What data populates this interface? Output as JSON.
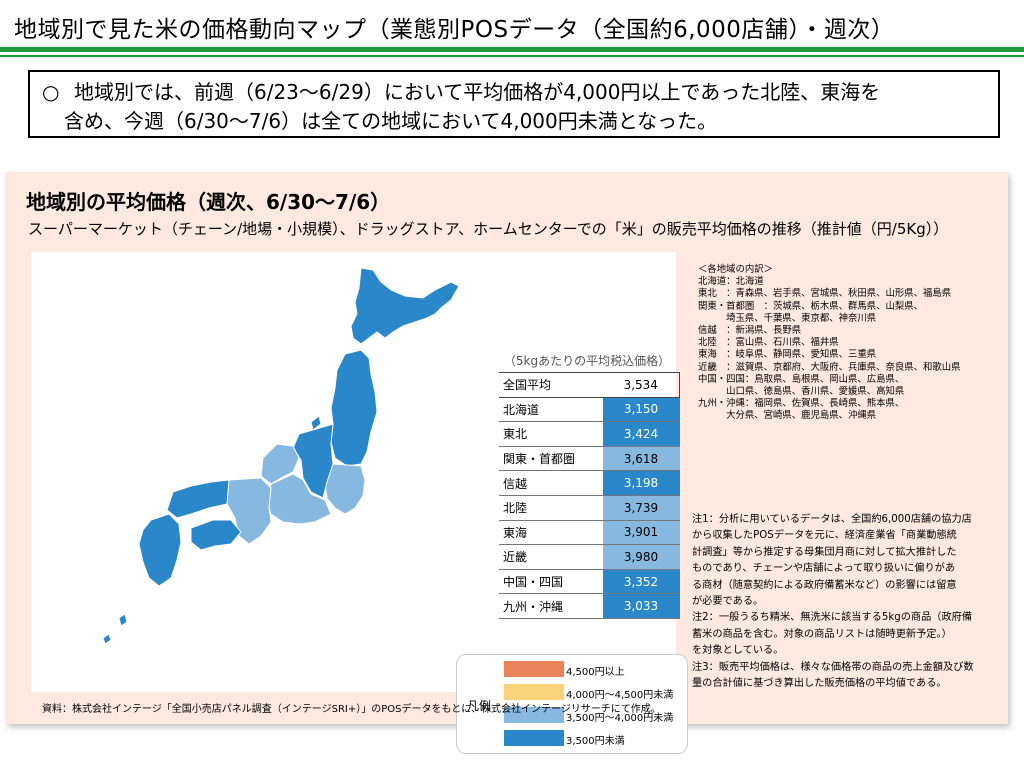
{
  "page": {
    "title": "地域別で見た米の価格動向マップ（業態別POSデータ（全国約6,000店舗）・週次）"
  },
  "summary": {
    "bullet": "○",
    "line1": "地域別では、前週（6/23～6/29）において平均価格が4,000円以上であった北陸、東海を",
    "line2": "含め、今週（6/30～7/6）は全ての地域において4,000円未満となった。"
  },
  "panel": {
    "title": "地域別の平均価格（週次、6/30～7/6）",
    "subtitle": "スーパーマーケット（チェーン/地場・小規模）、ドラッグストア、ホームセンターでの「米」の販売平均価格の推移（推計値（円/5Kg））"
  },
  "table": {
    "caption": "（5kgあたりの平均税込価格）",
    "rows": [
      {
        "region": "全国平均",
        "value": "3,534",
        "band": "none"
      },
      {
        "region": "北海道",
        "value": "3,150",
        "band": "under_3500"
      },
      {
        "region": "東北",
        "value": "3,424",
        "band": "under_3500"
      },
      {
        "region": "関東・首都圏",
        "value": "3,618",
        "band": "3500_4000"
      },
      {
        "region": "信越",
        "value": "3,198",
        "band": "under_3500"
      },
      {
        "region": "北陸",
        "value": "3,739",
        "band": "3500_4000"
      },
      {
        "region": "東海",
        "value": "3,901",
        "band": "3500_4000"
      },
      {
        "region": "近畿",
        "value": "3,980",
        "band": "3500_4000"
      },
      {
        "region": "中国・四国",
        "value": "3,352",
        "band": "under_3500"
      },
      {
        "region": "九州・沖縄",
        "value": "3,033",
        "band": "under_3500"
      }
    ]
  },
  "legend": {
    "title": "凡例",
    "items": [
      {
        "label": "4,500円以上",
        "color": "#ec8257"
      },
      {
        "label": "4,000円～4,500円未満",
        "color": "#f8d377"
      },
      {
        "label": "3,500円～4,000円未満",
        "color": "#86b8e0"
      },
      {
        "label": "3,500円未満",
        "color": "#2a87c9"
      }
    ]
  },
  "regions_breakdown": {
    "heading": "＜各地域の内訳＞",
    "lines": [
      "北海道：北海道",
      "東北　：青森県、岩手県、宮城県、秋田県、山形県、福島県",
      "関東・首都圏　：茨城県、栃木県、群馬県、山梨県、",
      "　　　埼玉県、千葉県、東京都、神奈川県",
      "信越　：新潟県、長野県",
      "北陸　：富山県、石川県、福井県",
      "東海　：岐阜県、静岡県、愛知県、三重県",
      "近畿　：滋賀県、京都府、大阪府、兵庫県、奈良県、和歌山県",
      "中国・四国：鳥取県、島根県、岡山県、広島県、",
      "　　　山口県、徳島県、香川県、愛媛県、高知県",
      "九州・沖縄：福岡県、佐賀県、長崎県、熊本県、",
      "　　　大分県、宮崎県、鹿児島県、沖縄県"
    ]
  },
  "notes": [
    "注1：分析に用いているデータは、全国約6,000店舗の協力店",
    "から収集したPOSデータを元に、経済産業省「商業動態統",
    "計調査」等から推定する母集団月商に対して拡大推計した",
    "ものであり、チェーンや店舗によって取り扱いに偏りがあ",
    "る商材（随意契約による政府備蓄米など）の影響には留意",
    "が必要である。",
    "注2：一般うるち精米、無洗米に該当する5kgの商品（政府備",
    "蓄米の商品を含む。対象の商品リストは随時更新予定。）",
    "を対象としている。",
    "注3：販売平均価格は、様々な価格帯の商品の売上金額及び数",
    "量の合計値に基づき算出した販売価格の平均値である。"
  ],
  "source": "資料：株式会社インテージ「全国小売店パネル調査（インテージSRI+）」のPOSデータをもとに、株式会社インテージリサーチにて作成。",
  "map_colors": {
    "dark": "#2a87c9",
    "light": "#86b8e0",
    "stroke": "#ffffff"
  }
}
